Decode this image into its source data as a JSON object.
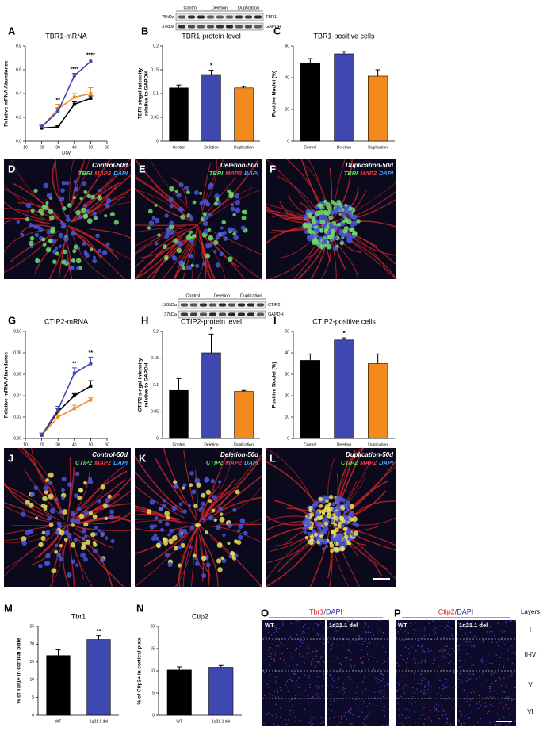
{
  "chart_data": [
    {
      "panel": "A",
      "type": "line",
      "title": "TBR1-mRNA",
      "xlabel": "Day",
      "ylabel": "Relative mRNA Abundance",
      "x": [
        20,
        30,
        40,
        50
      ],
      "xlim": [
        10,
        60
      ],
      "xticks": [
        10,
        20,
        30,
        40,
        50,
        60
      ],
      "ylim": [
        0,
        0.8
      ],
      "yticks": [
        {
          "value": 0,
          "label": "0.0"
        },
        0.2,
        0.4,
        0.6,
        0.8
      ],
      "series": [
        {
          "color": "#000000",
          "values": [
            0.11,
            0.12,
            0.31,
            0.36
          ],
          "errors": [
            0.02,
            0.01,
            0.02,
            0.02
          ]
        },
        {
          "color": "#f28a1e",
          "values": [
            0.12,
            0.27,
            0.37,
            0.4
          ],
          "errors": [
            0.02,
            0.04,
            0.03,
            0.05
          ]
        },
        {
          "color": "#3f48b0",
          "values": [
            0.12,
            0.25,
            0.55,
            0.67
          ],
          "errors": [
            0.02,
            0.03,
            0.02,
            0.02
          ]
        }
      ],
      "annotations": [
        null,
        "**",
        "****",
        "****"
      ]
    },
    {
      "panel": "B",
      "type": "bar",
      "title": "TBR1-protein level",
      "ylabel": [
        "TBRI singal intensity",
        "relative to GAPDH"
      ],
      "categories": [
        "Control",
        "Deletion",
        "Duplication"
      ],
      "values": [
        0.112,
        0.14,
        0.112
      ],
      "errors": [
        0.006,
        0.009,
        0.003
      ],
      "colors": [
        "#000000",
        "#3f48b0",
        "#f28a1e"
      ],
      "ylim": [
        0,
        0.2
      ],
      "yticks": [
        0,
        0.05,
        0.1,
        0.15,
        0.2
      ],
      "significance": [
        null,
        "*",
        null
      ]
    },
    {
      "panel": "C",
      "type": "bar",
      "title": "TBR1-positive cells",
      "ylabel": "Positive Nuclei (%)",
      "categories": [
        "Control",
        "Deletion",
        "Duplication"
      ],
      "values": [
        49,
        55,
        41
      ],
      "errors": [
        3,
        1.5,
        4
      ],
      "colors": [
        "#000000",
        "#3f48b0",
        "#f28a1e"
      ],
      "ylim": [
        0,
        60
      ],
      "yticks": [
        0,
        20,
        40,
        60
      ]
    },
    {
      "panel": "G",
      "type": "line",
      "title": "CTIP2-mRNA",
      "xlabel": "Day",
      "ylabel": "Relative mRNA Abundance",
      "x": [
        20,
        30,
        40,
        50
      ],
      "xlim": [
        10,
        60
      ],
      "xticks": [
        10,
        20,
        30,
        40,
        50,
        60
      ],
      "ylim": [
        0,
        0.1
      ],
      "yticks": [
        {
          "value": 0,
          "label": "0.00"
        },
        0.02,
        0.04,
        0.06,
        0.08,
        {
          "value": 0.1,
          "label": "0.10"
        }
      ],
      "series": [
        {
          "color": "#000000",
          "values": [
            0.003,
            0.025,
            0.04,
            0.049
          ],
          "errors": [
            0.002,
            0.003,
            0.002,
            0.005
          ]
        },
        {
          "color": "#f28a1e",
          "values": [
            0.003,
            0.02,
            0.028,
            0.036
          ],
          "errors": [
            0.002,
            0.005,
            0.003,
            0.002
          ]
        },
        {
          "color": "#3f48b0",
          "values": [
            0.003,
            0.027,
            0.061,
            0.07
          ],
          "errors": [
            0.002,
            0.003,
            0.005,
            0.006
          ]
        }
      ],
      "annotations": [
        null,
        null,
        "**",
        "**"
      ]
    },
    {
      "panel": "H",
      "type": "bar",
      "title": "CTIP2-protein level",
      "ylabel": [
        "CTIP2 singal intensity",
        "relative to GAPDH"
      ],
      "categories": [
        "Control",
        "Deletion",
        "Duplication"
      ],
      "values": [
        0.09,
        0.16,
        0.088
      ],
      "errors": [
        0.022,
        0.035,
        0.002
      ],
      "colors": [
        "#000000",
        "#3f48b0",
        "#f28a1e"
      ],
      "ylim": [
        0,
        0.2
      ],
      "yticks": [
        0,
        0.05,
        0.1,
        0.15,
        0.2
      ],
      "significance": [
        null,
        "*",
        null
      ]
    },
    {
      "panel": "I",
      "type": "bar",
      "title": "CTIP2-positive cells",
      "ylabel": "Positive Nuclei (%)",
      "categories": [
        "Control",
        "Deletion",
        "Duplication"
      ],
      "values": [
        36.5,
        46,
        35
      ],
      "errors": [
        3,
        1,
        4.5
      ],
      "colors": [
        "#000000",
        "#3f48b0",
        "#f28a1e"
      ],
      "ylim": [
        0,
        50
      ],
      "yticks": [
        0,
        10,
        20,
        30,
        40,
        50
      ],
      "significance": [
        null,
        "*",
        null
      ]
    },
    {
      "panel": "M",
      "type": "bar",
      "title": "Tbr1",
      "ylabel": "% of Tbr1+ in cortical plate",
      "categories": [
        "WT",
        "1q21.1 del"
      ],
      "values": [
        16.8,
        21.3
      ],
      "errors": [
        1.6,
        1.1
      ],
      "colors": [
        "#000000",
        "#3f48b0"
      ],
      "ylim": [
        0,
        25
      ],
      "yticks": [
        0,
        5,
        10,
        15,
        20,
        25
      ],
      "significance": [
        null,
        "**"
      ]
    },
    {
      "panel": "N",
      "type": "bar",
      "title": "Ctip2",
      "ylabel": "% of Ctip2+ in cortical plate",
      "categories": [
        "WT",
        "1q21.1 del"
      ],
      "values": [
        10.2,
        10.8
      ],
      "errors": [
        0.7,
        0.4
      ],
      "colors": [
        "#000000",
        "#3f48b0"
      ],
      "ylim": [
        0,
        20
      ],
      "yticks": [
        0,
        5,
        10,
        15,
        20
      ]
    }
  ],
  "blots": [
    {
      "markers": [
        "75kDa",
        "37kDa"
      ],
      "proteins": [
        "TBR1",
        "GAPDH"
      ],
      "groups": [
        "Control",
        "Deletion",
        "Duplication"
      ]
    },
    {
      "markers": [
        "120kDa",
        "37kDa"
      ],
      "proteins": [
        "CTIP2",
        "GAPDH"
      ],
      "groups": [
        "Control",
        "Deletion",
        "Duplication"
      ]
    }
  ],
  "micrographs": [
    {
      "panel": "D",
      "label": "Control-50d",
      "stains": [
        "TBRI",
        "MAP2",
        "DAPI"
      ]
    },
    {
      "panel": "E",
      "label": "Deletion-50d",
      "stains": [
        "TBRI",
        "MAP2",
        "DAPI"
      ]
    },
    {
      "panel": "F",
      "label": "Duplication-50d",
      "stains": [
        "TBRI",
        "MAP2",
        "DAPI"
      ]
    },
    {
      "panel": "J",
      "label": "Control-50d",
      "stains": [
        "CTIP2",
        "MAP2",
        "DAPI"
      ]
    },
    {
      "panel": "K",
      "label": "Deletion-50d",
      "stains": [
        "CTIP2",
        "MAP2",
        "DAPI"
      ]
    },
    {
      "panel": "L",
      "label": "Duplication-50d",
      "stains": [
        "CTIP2",
        "MAP2",
        "DAPI"
      ]
    }
  ],
  "histology": [
    {
      "panel": "O",
      "stain": [
        "Tbr1",
        "/DAPI"
      ],
      "columns": [
        "WT",
        "1q21.1 del"
      ]
    },
    {
      "panel": "P",
      "stain": [
        "Ctip2",
        "/DAPI"
      ],
      "columns": [
        "WT",
        "1q21.1 del"
      ]
    }
  ],
  "layers": {
    "title": "Layers",
    "names": [
      "I",
      "II-IV",
      "V",
      "VI"
    ]
  }
}
